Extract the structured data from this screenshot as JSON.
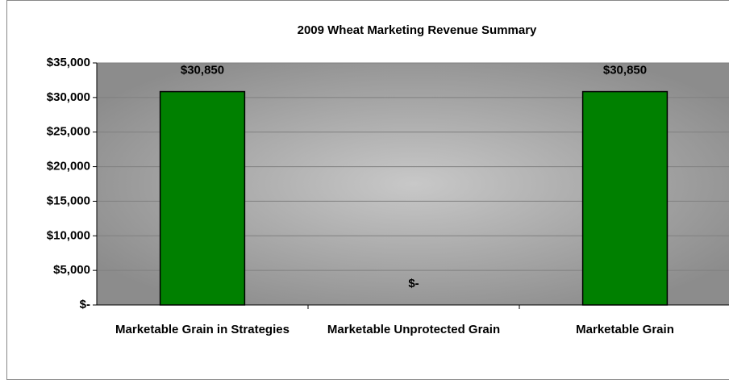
{
  "chart_data": {
    "type": "bar",
    "title": "2009 Wheat Marketing Revenue Summary",
    "categories": [
      "Marketable Grain in Strategies",
      "Marketable Unprotected Grain",
      "Marketable Grain"
    ],
    "values": [
      30850,
      0,
      30850
    ],
    "value_labels": [
      "$30,850",
      "$-",
      "$30,850"
    ],
    "color": "#008000",
    "ylim": [
      0,
      35000
    ],
    "yticks": [
      {
        "value": 0,
        "label": "$-"
      },
      {
        "value": 5000,
        "label": "$5,000"
      },
      {
        "value": 10000,
        "label": "$10,000"
      },
      {
        "value": 15000,
        "label": "$15,000"
      },
      {
        "value": 20000,
        "label": "$20,000"
      },
      {
        "value": 25000,
        "label": "$25,000"
      },
      {
        "value": 30000,
        "label": "$30,000"
      },
      {
        "value": 35000,
        "label": "$35,000"
      }
    ],
    "grid": true
  }
}
